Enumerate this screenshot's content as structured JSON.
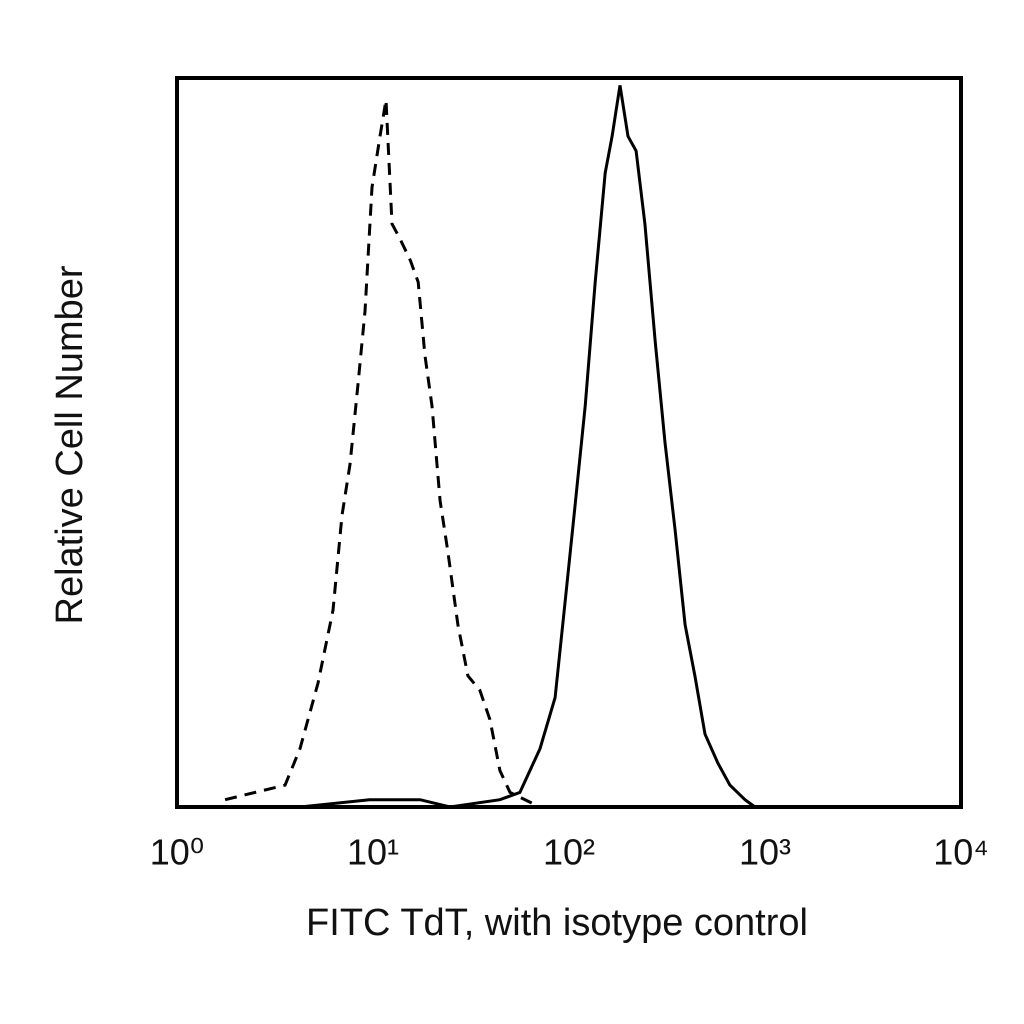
{
  "chart_data": {
    "type": "line",
    "xlabel": "FITC TdT, with isotype control",
    "ylabel": "Relative Cell Number",
    "xscale": "log",
    "xlim": [
      1,
      10000
    ],
    "ylim": [
      0,
      100
    ],
    "xticks": [
      {
        "value": 1,
        "label": "10⁰"
      },
      {
        "value": 10,
        "label": "10¹"
      },
      {
        "value": 100,
        "label": "10²"
      },
      {
        "value": 1000,
        "label": "10³"
      },
      {
        "value": 10000,
        "label": "10⁴"
      }
    ],
    "series": [
      {
        "color": "#000000",
        "dash": true,
        "x": [
          1.76,
          3.56,
          4.24,
          5.24,
          6.25,
          6.95,
          7.63,
          8.38,
          9.1,
          9.88,
          10.86,
          11.65,
          12.5,
          13.7,
          15.5,
          17.0,
          18.4,
          20.0,
          22.0,
          24.1,
          27.1,
          30.5,
          35.1,
          39.5,
          44.4,
          50.0,
          71.1
        ],
        "values": [
          1,
          3,
          8,
          17,
          27,
          40,
          47,
          58,
          68,
          85,
          92,
          97,
          80,
          78,
          75,
          72,
          62,
          55,
          42,
          35,
          25,
          18,
          16,
          12,
          5,
          2,
          0
        ]
      },
      {
        "color": "#000000",
        "dash": false,
        "x": [
          1.86,
          4.24,
          9.6,
          17.4,
          24.7,
          44.4,
          56.2,
          71.1,
          84.9,
          95.4,
          107,
          121,
          136,
          153,
          166,
          182,
          200,
          220,
          244,
          275,
          309,
          348,
          391,
          439,
          494,
          576,
          662,
          791,
          889
        ],
        "values": [
          0,
          0,
          1,
          1,
          0,
          1,
          2,
          8,
          15,
          28,
          41,
          55,
          72,
          87,
          92,
          99,
          92,
          90,
          80,
          64,
          50,
          38,
          25,
          18,
          10,
          6,
          3,
          1,
          0
        ]
      }
    ]
  }
}
